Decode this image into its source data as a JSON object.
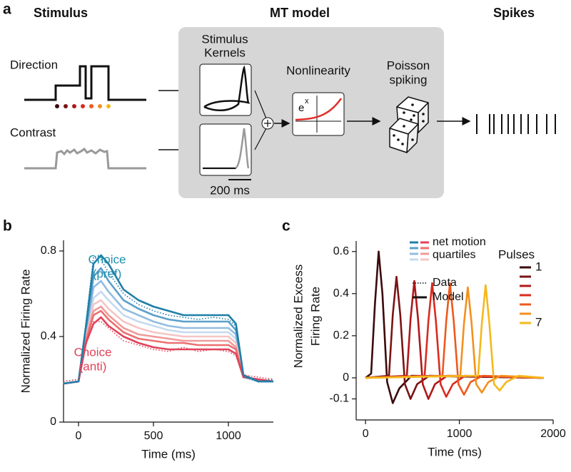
{
  "diagram": {
    "panel_label": "a",
    "stimulus_title": "Stimulus",
    "model_title": "MT model",
    "spikes_title": "Spikes",
    "direction": "Direction",
    "contrast": "Contrast",
    "kernels_lines": [
      "Stimulus",
      "Kernels"
    ],
    "nonlinearity": "Nonlinearity",
    "exp_base": "e",
    "exp_power": "x",
    "spiking_lines": [
      "Poisson",
      "spiking"
    ],
    "scale_bar": "200 ms"
  },
  "chart_data": [
    {
      "type": "line",
      "panel_label": "b",
      "ylabel": "Normalized Firing Rate",
      "xlabel": "Time (ms)",
      "xlim": [
        -100,
        1300
      ],
      "ylim": [
        0,
        0.85
      ],
      "xticks": [
        0,
        500,
        1000
      ],
      "yticks": [
        0,
        0.4,
        0.8
      ],
      "x": [
        -100,
        0,
        50,
        100,
        150,
        200,
        300,
        400,
        500,
        600,
        700,
        800,
        900,
        1000,
        1050,
        1100,
        1200,
        1300
      ],
      "series": [
        {
          "color": "#c6d9ee",
          "style": "solid",
          "values": [
            0.18,
            0.19,
            0.41,
            0.58,
            0.61,
            0.57,
            0.5,
            0.47,
            0.45,
            0.43,
            0.42,
            0.42,
            0.42,
            0.42,
            0.39,
            0.21,
            0.19,
            0.19
          ]
        },
        {
          "color": "#93bde0",
          "style": "solid",
          "values": [
            0.18,
            0.19,
            0.42,
            0.63,
            0.66,
            0.61,
            0.53,
            0.5,
            0.47,
            0.45,
            0.44,
            0.44,
            0.44,
            0.44,
            0.41,
            0.22,
            0.19,
            0.19
          ]
        },
        {
          "color": "#5b9fc9",
          "style": "solid",
          "values": [
            0.18,
            0.19,
            0.43,
            0.68,
            0.72,
            0.66,
            0.57,
            0.53,
            0.5,
            0.48,
            0.47,
            0.47,
            0.47,
            0.47,
            0.43,
            0.22,
            0.19,
            0.19
          ]
        },
        {
          "color": "#f6c4c4",
          "style": "solid",
          "values": [
            0.18,
            0.19,
            0.4,
            0.55,
            0.57,
            0.53,
            0.47,
            0.44,
            0.42,
            0.41,
            0.4,
            0.4,
            0.4,
            0.4,
            0.37,
            0.21,
            0.2,
            0.19
          ]
        },
        {
          "color": "#f09a9a",
          "style": "solid",
          "values": [
            0.18,
            0.19,
            0.39,
            0.52,
            0.54,
            0.5,
            0.44,
            0.41,
            0.4,
            0.39,
            0.38,
            0.38,
            0.38,
            0.38,
            0.35,
            0.21,
            0.2,
            0.19
          ]
        },
        {
          "color": "#ec7070",
          "style": "solid",
          "values": [
            0.18,
            0.19,
            0.38,
            0.5,
            0.52,
            0.48,
            0.42,
            0.39,
            0.38,
            0.37,
            0.37,
            0.36,
            0.36,
            0.36,
            0.34,
            0.21,
            0.2,
            0.19
          ]
        },
        {
          "color": "#e0435a",
          "style": "solid",
          "values": [
            0.18,
            0.19,
            0.37,
            0.46,
            0.49,
            0.45,
            0.4,
            0.37,
            0.35,
            0.34,
            0.34,
            0.34,
            0.34,
            0.34,
            0.32,
            0.21,
            0.2,
            0.19
          ]
        },
        {
          "color": "#1f7fa8",
          "style": "solid",
          "values": [
            0.18,
            0.19,
            0.45,
            0.74,
            0.78,
            0.74,
            0.62,
            0.57,
            0.54,
            0.52,
            0.5,
            0.5,
            0.5,
            0.5,
            0.46,
            0.22,
            0.19,
            0.19
          ]
        },
        {
          "color": "#1f7fa8",
          "style": "dotted",
          "values": [
            0.19,
            0.2,
            0.47,
            0.77,
            0.76,
            0.7,
            0.6,
            0.55,
            0.52,
            0.5,
            0.49,
            0.48,
            0.49,
            0.48,
            0.45,
            0.21,
            0.19,
            0.2
          ]
        },
        {
          "color": "#e0435a",
          "style": "dotted",
          "values": [
            0.19,
            0.2,
            0.36,
            0.47,
            0.47,
            0.44,
            0.38,
            0.36,
            0.34,
            0.33,
            0.35,
            0.33,
            0.34,
            0.33,
            0.31,
            0.22,
            0.21,
            0.2
          ]
        }
      ],
      "legend_title_lines": [
        "net motion",
        "quartiles"
      ],
      "legend_styles": [
        {
          "label": "Data",
          "style": "dotted"
        },
        {
          "label": "Model",
          "style": "solid"
        }
      ],
      "annotations": [
        {
          "lines": [
            "Choice",
            "(pref)"
          ],
          "color": "#1f8fb0"
        },
        {
          "lines": [
            "Choice",
            "(anti)"
          ],
          "color": "#e0435a"
        }
      ]
    },
    {
      "type": "line",
      "panel_label": "c",
      "ylabel_lines": [
        "Normalized Excess",
        "Firing Rate"
      ],
      "xlabel": "Time (ms)",
      "xlim": [
        -100,
        2000
      ],
      "ylim": [
        -0.2,
        0.65
      ],
      "xticks": [
        0,
        1000,
        2000
      ],
      "yticks": [
        0.6,
        0.4,
        0.2,
        0,
        -0.1
      ],
      "legend_title": "Pulses",
      "legend_first": "1",
      "legend_last": "7",
      "series": [
        {
          "color": "#3b0a0d",
          "x": [
            0,
            60,
            100,
            140,
            180,
            230,
            290,
            360,
            490,
            1900
          ],
          "values": [
            0,
            0.02,
            0.35,
            0.6,
            0.4,
            -0.02,
            -0.12,
            -0.05,
            0.01,
            0
          ]
        },
        {
          "color": "#7a1414",
          "x": [
            0,
            250,
            290,
            330,
            370,
            420,
            480,
            550,
            680,
            1900
          ],
          "values": [
            0,
            0.01,
            0.3,
            0.48,
            0.3,
            -0.03,
            -0.1,
            -0.03,
            0.01,
            0
          ]
        },
        {
          "color": "#b0181a",
          "x": [
            0,
            440,
            480,
            520,
            560,
            610,
            670,
            740,
            870,
            1900
          ],
          "values": [
            0,
            0.01,
            0.28,
            0.46,
            0.28,
            -0.03,
            -0.1,
            -0.03,
            0.01,
            0
          ]
        },
        {
          "color": "#d92b1f",
          "x": [
            0,
            630,
            670,
            710,
            750,
            800,
            860,
            930,
            1060,
            1900
          ],
          "values": [
            0,
            0.01,
            0.27,
            0.45,
            0.27,
            -0.03,
            -0.09,
            -0.03,
            0.01,
            0
          ]
        },
        {
          "color": "#ec5a1e",
          "x": [
            0,
            820,
            860,
            900,
            940,
            990,
            1050,
            1120,
            1250,
            1900
          ],
          "values": [
            0,
            0.01,
            0.27,
            0.45,
            0.27,
            -0.03,
            -0.08,
            -0.02,
            0.01,
            0
          ]
        },
        {
          "color": "#f3901e",
          "x": [
            0,
            1010,
            1050,
            1090,
            1130,
            1180,
            1240,
            1310,
            1440,
            1900
          ],
          "values": [
            0,
            0.01,
            0.26,
            0.43,
            0.26,
            -0.03,
            -0.07,
            -0.02,
            0.01,
            0
          ]
        },
        {
          "color": "#f5b81c",
          "x": [
            0,
            1200,
            1240,
            1280,
            1320,
            1370,
            1430,
            1500,
            1630,
            1900
          ],
          "values": [
            0,
            0.01,
            0.26,
            0.44,
            0.26,
            -0.03,
            -0.06,
            -0.02,
            0.01,
            0
          ]
        }
      ]
    }
  ]
}
